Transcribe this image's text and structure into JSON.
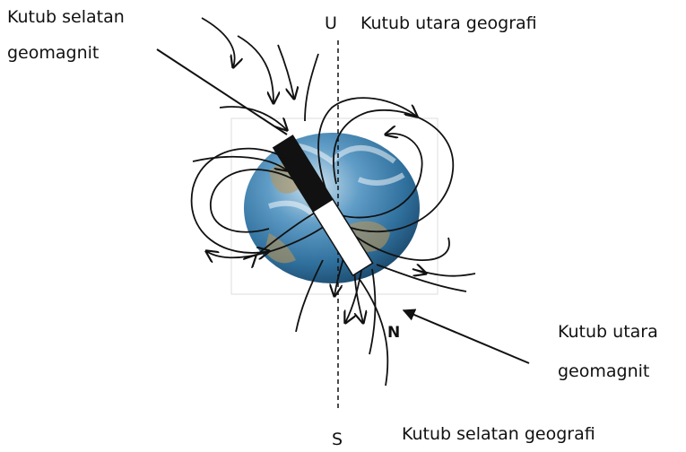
{
  "labels": {
    "south_geomagnetic": [
      "Kutub selatan",
      "geomagnit"
    ],
    "north_letter": "U",
    "north_geographic": "Kutub utara geografi",
    "magnet_pole": "N",
    "north_geomagnetic": [
      "Kutub utara",
      "geomagnit"
    ],
    "south_letter": "S",
    "south_geographic": "Kutub selatan geografi"
  }
}
